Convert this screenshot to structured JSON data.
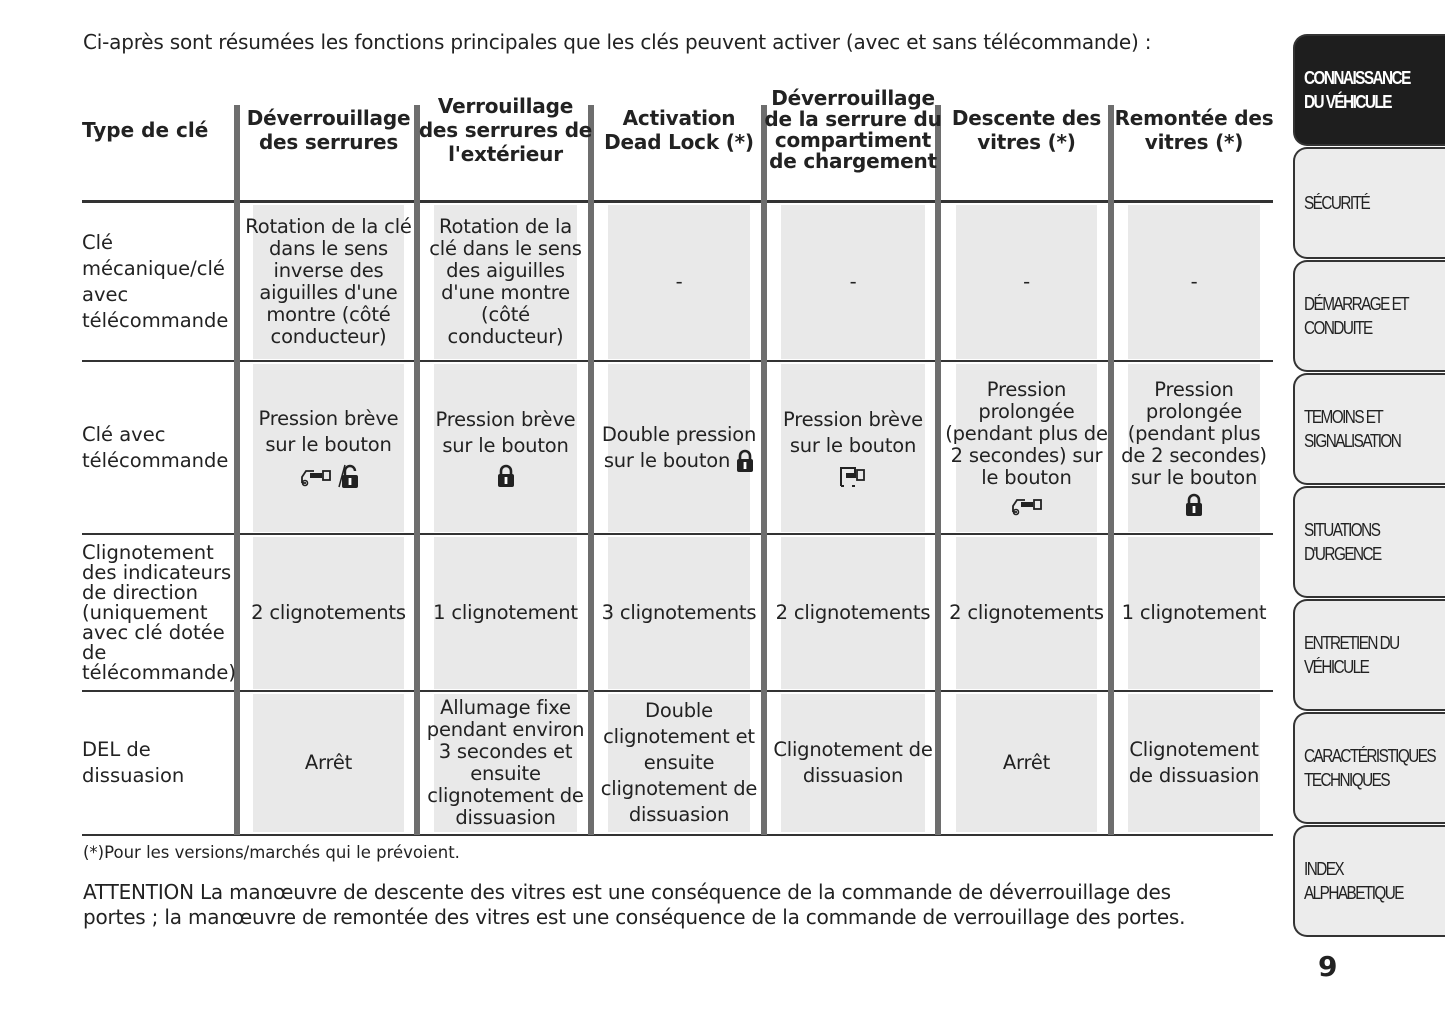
{
  "intro": "Ci-après sont résumées les fonctions principales que les clés peuvent activer (avec et sans télécommande) :",
  "table": {
    "corner_header": "Type de clé",
    "columns": [
      "Déverrouillage des serrures",
      "Verrouillage des serrures de l'extérieur",
      "Activation Dead Lock (*)",
      "Déverrouillage de la serrure du compartiment de chargement",
      "Descente des vitres (*)",
      "Remontée des vitres (*)"
    ],
    "rows": [
      {
        "label": "Clé mécanique/clé avec télécommande",
        "cells": [
          {
            "text": "Rotation de la clé dans le sens inverse des aiguilles d'une montre (côté conducteur)"
          },
          {
            "text": "Rotation de la clé dans le sens des aiguilles d'une montre (côté conducteur)"
          },
          {
            "text": "-"
          },
          {
            "text": "-"
          },
          {
            "text": "-"
          },
          {
            "text": "-"
          }
        ]
      },
      {
        "label": "Clé avec télécommande",
        "cells": [
          {
            "text": "Pression brève sur le bouton",
            "icons": [
              "car-unlock-icon",
              "unlock-icon"
            ]
          },
          {
            "text": "Pression brève sur le bouton",
            "icons": [
              "lock-icon"
            ]
          },
          {
            "text": "Double pression sur le bouton",
            "icons": [
              "lock-icon"
            ],
            "inline": true
          },
          {
            "text": "Pression brève sur le bouton",
            "icons": [
              "trunk-icon"
            ]
          },
          {
            "text": "Pression prolongée (pendant plus de 2 secondes) sur le bouton",
            "icons": [
              "car-unlock-icon"
            ]
          },
          {
            "text": "Pression prolongée (pendant plus de 2 secondes) sur le bouton",
            "icons": [
              "lock-icon"
            ]
          }
        ]
      },
      {
        "label": "Clignotement des indicateurs de direction (uniquement avec clé dotée de télécommande)",
        "cells": [
          {
            "text": "2 clignotements"
          },
          {
            "text": "1 clignotement"
          },
          {
            "text": "3 clignotements"
          },
          {
            "text": "2 clignotements"
          },
          {
            "text": "2 clignotements"
          },
          {
            "text": "1 clignotement"
          }
        ]
      },
      {
        "label": "DEL de dissuasion",
        "cells": [
          {
            "text": "Arrêt"
          },
          {
            "text": "Allumage fixe pendant environ 3 secondes et ensuite clignotement de dissuasion"
          },
          {
            "text": "Double clignotement et ensuite clignotement de dissuasion"
          },
          {
            "text": "Clignotement de dissuasion"
          },
          {
            "text": "Arrêt"
          },
          {
            "text": "Clignotement de dissuasion"
          }
        ]
      }
    ]
  },
  "footnote": "(*)Pour les versions/marchés qui le prévoient.",
  "attention": "ATTENTION La manœuvre de descente des vitres est une conséquence de la commande de déverrouillage des portes ; la manœuvre de remontée des vitres est une conséquence de la commande de verrouillage des portes.",
  "sidebar_tabs": [
    {
      "label": "CONNAISSANCE DU VÉHICULE",
      "active": true
    },
    {
      "label": "SÉCURITÉ"
    },
    {
      "label": "DÉMARRAGE ET CONDUITE"
    },
    {
      "label": "TEMOINS ET SIGNALISATION"
    },
    {
      "label": "SITUATIONS D'URGENCE"
    },
    {
      "label": "ENTRETIEN DU VÉHICULE"
    },
    {
      "label": "CARACTÉRISTIQUES TECHNIQUES"
    },
    {
      "label": "INDEX ALPHABETIQUE"
    }
  ],
  "page_number": "9"
}
